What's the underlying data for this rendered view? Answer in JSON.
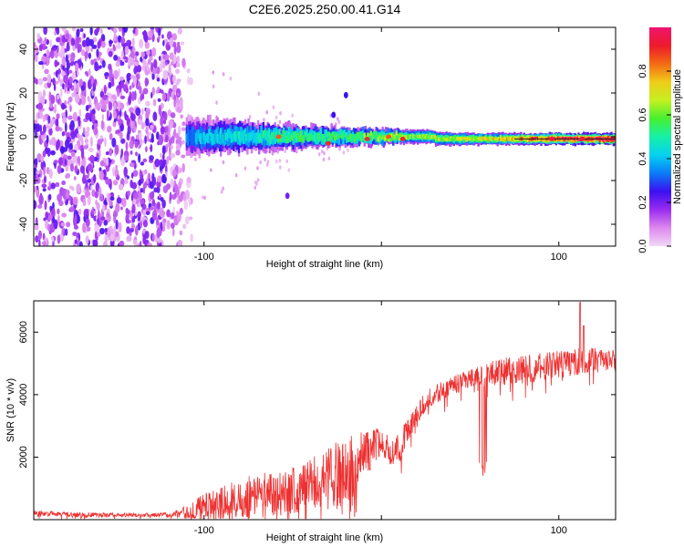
{
  "chart_data": [
    {
      "type": "heatmap",
      "title": "C2E6.2025.250.00.41.G14",
      "xlabel": "Height of straight line (km)",
      "ylabel": "Frequency (Hz)",
      "xlim": [
        -196,
        132
      ],
      "ylim": [
        -50,
        50
      ],
      "xticks": [
        -100,
        0,
        100
      ],
      "xtick_labels": [
        "-100",
        "",
        "100"
      ],
      "yticks": [
        -40,
        -20,
        0,
        20,
        40
      ],
      "ytick_labels": [
        "-40",
        "-20",
        "0",
        "20",
        "40"
      ],
      "colorbar": {
        "label": "Normalized spectral amplitude",
        "range": [
          0,
          1
        ],
        "ticks": [
          0.0,
          0.2,
          0.4,
          0.6,
          0.8
        ],
        "tick_labels": [
          "0.0",
          "0.2",
          "0.4",
          "0.6",
          "0.8"
        ],
        "colors": [
          "#f2d8f6",
          "#dd88ee",
          "#9a2cf0",
          "#3a10f0",
          "#0a7cf8",
          "#06d2f0",
          "#16f0a8",
          "#46f030",
          "#c4f020",
          "#f0cc18",
          "#f46a14",
          "#ee1a2a",
          "#f01470"
        ]
      },
      "noise_region_x": [
        -196,
        -108
      ],
      "ridge_frequency_hz": 0,
      "ridge_profile": [
        {
          "x": -110,
          "halfwidth_hz": 8,
          "amp": 0.32
        },
        {
          "x": -90,
          "halfwidth_hz": 7,
          "amp": 0.42
        },
        {
          "x": -70,
          "halfwidth_hz": 6,
          "amp": 0.45
        },
        {
          "x": -50,
          "halfwidth_hz": 5,
          "amp": 0.5
        },
        {
          "x": -30,
          "halfwidth_hz": 4,
          "amp": 0.5
        },
        {
          "x": -10,
          "halfwidth_hz": 3.5,
          "amp": 0.55
        },
        {
          "x": 10,
          "halfwidth_hz": 3,
          "amp": 0.58
        },
        {
          "x": 40,
          "halfwidth_hz": 2.8,
          "amp": 0.6
        },
        {
          "x": 70,
          "halfwidth_hz": 2.5,
          "amp": 0.7
        },
        {
          "x": 100,
          "halfwidth_hz": 2.5,
          "amp": 0.85
        },
        {
          "x": 132,
          "halfwidth_hz": 2.5,
          "amp": 0.95
        }
      ],
      "hot_spots": [
        {
          "x": -58,
          "y": 0,
          "amp": 0.85
        },
        {
          "x": -30,
          "y": -3,
          "amp": 0.9
        },
        {
          "x": -8,
          "y": -1,
          "amp": 0.9
        },
        {
          "x": 4,
          "y": 0,
          "amp": 0.85
        },
        {
          "x": 12,
          "y": -1,
          "amp": 0.9
        },
        {
          "x": 96,
          "y": -1,
          "amp": 0.95
        },
        {
          "x": 113,
          "y": -1,
          "amp": 0.95
        }
      ],
      "isolated_blobs": [
        {
          "x": -20,
          "y": 19,
          "amp": 0.25
        },
        {
          "x": -27,
          "y": 10,
          "amp": 0.25
        },
        {
          "x": -53,
          "y": -27,
          "amp": 0.2
        }
      ]
    },
    {
      "type": "line",
      "xlabel": "Height of straight line (km)",
      "ylabel": "SNR (10 * v/v)",
      "xlim": [
        -196,
        132
      ],
      "ylim": [
        0,
        7000
      ],
      "xticks": [
        -100,
        0,
        100
      ],
      "xtick_labels": [
        "-100",
        "",
        "100"
      ],
      "yticks": [
        2000,
        4000,
        6000
      ],
      "ytick_labels": [
        "2000",
        "4000",
        "6000"
      ],
      "series": [
        {
          "name": "SNR",
          "color": "#ee3030",
          "x": [
            -196,
            -170,
            -140,
            -120,
            -110,
            -100,
            -90,
            -80,
            -70,
            -60,
            -50,
            -40,
            -30,
            -20,
            -15,
            -10,
            -5,
            0,
            5,
            10,
            15,
            20,
            25,
            30,
            40,
            50,
            60,
            70,
            80,
            90,
            100,
            110,
            120,
            132
          ],
          "y": [
            200,
            150,
            140,
            160,
            230,
            400,
            520,
            680,
            760,
            820,
            950,
            1100,
            1300,
            1500,
            1700,
            2100,
            2400,
            2500,
            2200,
            2400,
            2700,
            3300,
            3800,
            4000,
            4300,
            4500,
            4650,
            4750,
            4800,
            4900,
            5000,
            5050,
            5100,
            5100
          ],
          "noise_amplitude": [
            100,
            80,
            70,
            80,
            200,
            450,
            550,
            650,
            700,
            750,
            800,
            850,
            1000,
            1200,
            1100,
            800,
            700,
            400,
            500,
            500,
            500,
            400,
            300,
            300,
            280,
            300,
            420,
            450,
            450,
            450,
            450,
            450,
            400,
            350
          ],
          "dips": [
            {
              "x_from": 55,
              "x_to": 60,
              "to": 1300
            },
            {
              "x_from": 35,
              "x_to": 37,
              "to": 3300
            }
          ],
          "spikes": [
            {
              "x": 112,
              "to": 6950
            },
            {
              "x": 114,
              "to": 6200
            }
          ]
        }
      ]
    }
  ]
}
